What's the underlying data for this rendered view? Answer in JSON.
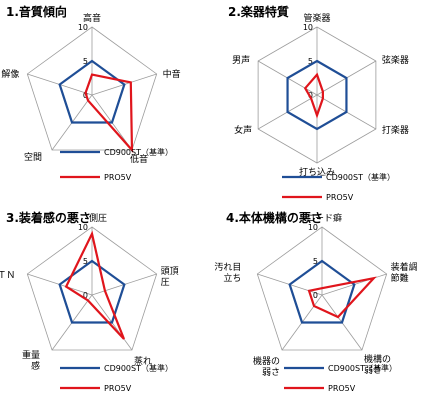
{
  "series_styles": [
    {
      "key": "CD900ST",
      "color": "#1F4E96",
      "width": 2.2
    },
    {
      "key": "PRO5V",
      "color": "#E0151C",
      "width": 2.2
    }
  ],
  "legend": {
    "cd": "CD900ST（基準）",
    "pro": "PRO5V"
  },
  "chart_data": [
    {
      "type": "radar",
      "title": "1.音質傾向",
      "axes": [
        "高音",
        "中音",
        "低音",
        "空間",
        "解像"
      ],
      "range": [
        0,
        10
      ],
      "ticks": [
        "0",
        "5",
        "10"
      ],
      "series": [
        {
          "name": "CD900ST（基準）",
          "values": [
            5,
            5,
            5,
            5,
            5
          ]
        },
        {
          "name": "PRO5V",
          "values": [
            3,
            6,
            10,
            1,
            1
          ]
        }
      ]
    },
    {
      "type": "radar",
      "title": "2.楽器特質",
      "axes": [
        "管楽器",
        "弦楽器",
        "打楽器",
        "打ち込み",
        "女声",
        "男声"
      ],
      "range": [
        0,
        10
      ],
      "ticks": [
        "0",
        "5",
        "10"
      ],
      "series": [
        {
          "name": "CD900ST（基準）",
          "values": [
            5,
            5,
            5,
            5,
            5,
            5
          ]
        },
        {
          "name": "PRO5V",
          "values": [
            3,
            1,
            1,
            3,
            1,
            2
          ]
        }
      ]
    },
    {
      "type": "radar",
      "title": "3.装着感の悪さ",
      "axes": [
        "側圧",
        "頭頂圧",
        "蒸れ",
        "重量感",
        "ＴＮ"
      ],
      "range": [
        0,
        10
      ],
      "ticks": [
        "0",
        "5",
        "10"
      ],
      "series": [
        {
          "name": "CD900ST（基準）",
          "values": [
            5,
            5,
            5,
            5,
            5
          ]
        },
        {
          "name": "PRO5V",
          "values": [
            9,
            2,
            8,
            1,
            4
          ]
        }
      ]
    },
    {
      "type": "radar",
      "title": "4.本体機構の悪さ",
      "axes": [
        "コード癖",
        "装着調節難",
        "機構の弱さ",
        "機器の弱さ",
        "汚れ目立ち"
      ],
      "range": [
        0,
        10
      ],
      "ticks": [
        "0",
        "5",
        "10"
      ],
      "series": [
        {
          "name": "CD900ST（基準）",
          "values": [
            5,
            5,
            5,
            5,
            5
          ]
        },
        {
          "name": "PRO5V",
          "values": [
            1,
            8,
            4,
            2,
            2
          ]
        }
      ]
    }
  ]
}
